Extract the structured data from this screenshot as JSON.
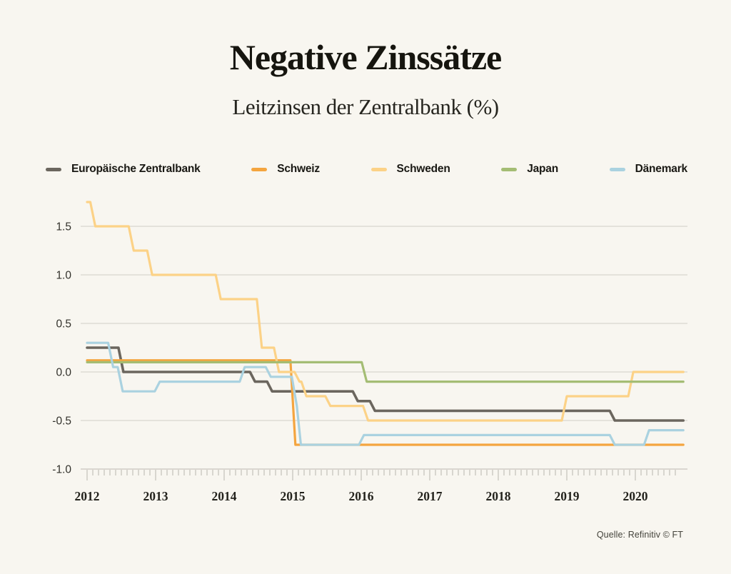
{
  "page": {
    "title": "Negative Zinssätze",
    "subtitle": "Leitzinsen der Zentralbank (%)",
    "source": "Quelle: Refinitiv © FT",
    "background_color": "#f8f6f0"
  },
  "chart_data": {
    "type": "line",
    "title": "Negative Zinssätze",
    "subtitle": "Leitzinsen der Zentralbank (%)",
    "line_style": "step",
    "grid": true,
    "legend_position": "top",
    "x_axis": {
      "label": "",
      "tick_labels": [
        "2012",
        "2013",
        "2014",
        "2015",
        "2016",
        "2017",
        "2018",
        "2019",
        "2020"
      ],
      "tick_values": [
        2012,
        2013,
        2014,
        2015,
        2016,
        2017,
        2018,
        2019,
        2020
      ],
      "minor_ticks": "monthly",
      "range": [
        2012.0,
        2020.75
      ]
    },
    "y_axis": {
      "label": "",
      "tick_labels": [
        "1.5",
        "1.0",
        "0.5",
        "0.0",
        "-0.5",
        "-1.0"
      ],
      "tick_values": [
        1.5,
        1.0,
        0.5,
        0.0,
        -0.5,
        -1.0
      ],
      "range": [
        -1.0,
        1.8
      ],
      "unit": "%"
    },
    "series": [
      {
        "name": "Europäische Zentralbank",
        "color": "#6b665e",
        "stroke_width": 3.6,
        "points": [
          [
            2012.0,
            0.25
          ],
          [
            2012.53,
            0.0
          ],
          [
            2014.45,
            -0.1
          ],
          [
            2014.7,
            -0.2
          ],
          [
            2015.95,
            -0.3
          ],
          [
            2016.2,
            -0.4
          ],
          [
            2019.7,
            -0.5
          ],
          [
            2020.7,
            -0.5
          ]
        ]
      },
      {
        "name": "Schweiz",
        "color": "#f4a53f",
        "stroke_width": 3.2,
        "points": [
          [
            2012.0,
            0.12
          ],
          [
            2015.04,
            -0.75
          ],
          [
            2020.7,
            -0.75
          ]
        ]
      },
      {
        "name": "Schweden",
        "color": "#fcd287",
        "stroke_width": 3.2,
        "points": [
          [
            2012.0,
            1.75
          ],
          [
            2012.12,
            1.5
          ],
          [
            2012.68,
            1.25
          ],
          [
            2012.95,
            1.0
          ],
          [
            2013.95,
            0.75
          ],
          [
            2014.55,
            0.25
          ],
          [
            2014.8,
            0.0
          ],
          [
            2015.1,
            -0.1
          ],
          [
            2015.2,
            -0.25
          ],
          [
            2015.55,
            -0.35
          ],
          [
            2016.1,
            -0.5
          ],
          [
            2019.0,
            -0.25
          ],
          [
            2019.97,
            0.0
          ],
          [
            2020.7,
            0.0
          ]
        ]
      },
      {
        "name": "Japan",
        "color": "#a4bd74",
        "stroke_width": 3.2,
        "points": [
          [
            2012.0,
            0.1
          ],
          [
            2016.08,
            -0.1
          ],
          [
            2020.7,
            -0.1
          ]
        ]
      },
      {
        "name": "Dänemark",
        "color": "#aad2e0",
        "stroke_width": 3.2,
        "points": [
          [
            2012.0,
            0.3
          ],
          [
            2012.38,
            0.05
          ],
          [
            2012.52,
            -0.2
          ],
          [
            2013.06,
            -0.1
          ],
          [
            2014.3,
            0.05
          ],
          [
            2014.68,
            -0.05
          ],
          [
            2015.06,
            -0.35
          ],
          [
            2015.12,
            -0.75
          ],
          [
            2016.04,
            -0.65
          ],
          [
            2019.7,
            -0.75
          ],
          [
            2020.2,
            -0.6
          ],
          [
            2020.7,
            -0.6
          ]
        ]
      }
    ],
    "style": {
      "grid_color": "#dedbd4",
      "axis_color": "#cfccc5",
      "tick_color": "#c2c0b9"
    }
  }
}
